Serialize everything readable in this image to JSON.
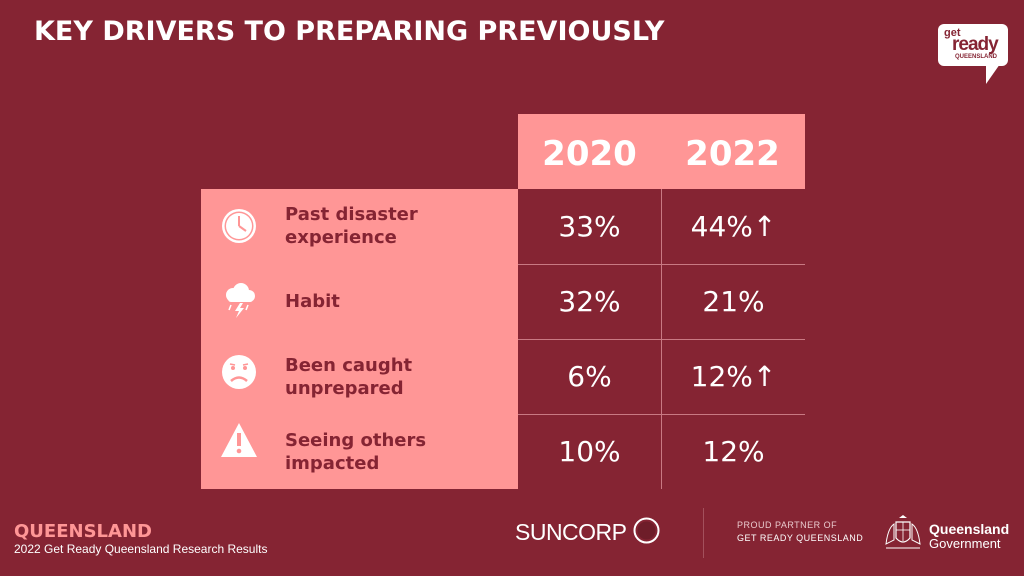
{
  "title": "KEY DRIVERS TO PREPARING PREVIOUSLY",
  "logo": {
    "get": "get",
    "ready": "ready",
    "queensland": "QUEENSLAND"
  },
  "table": {
    "years": [
      "2020",
      "2022"
    ],
    "rows": [
      {
        "icon": "clock-icon",
        "label_line1": "Past disaster",
        "label_line2": "experience",
        "v2020": "33%",
        "v2022": "44%↑"
      },
      {
        "icon": "storm-cloud-icon",
        "label_line1": "Habit",
        "label_line2": "",
        "v2020": "32%",
        "v2022": "21%"
      },
      {
        "icon": "sad-face-icon",
        "label_line1": "Been caught",
        "label_line2": "unprepared",
        "v2020": "6%",
        "v2022": "12%↑"
      },
      {
        "icon": "warning-icon",
        "label_line1": "Seeing others",
        "label_line2": "impacted",
        "v2020": "10%",
        "v2022": "12%"
      }
    ]
  },
  "footer": {
    "region": "QUEENSLAND",
    "subtitle": "2022 Get Ready Queensland Research Results",
    "suncorp": "SUNCORP",
    "partner_line1": "PROUD PARTNER OF",
    "partner_line2": "GET READY QUEENSLAND",
    "gov_line1": "Queensland",
    "gov_line2": "Government"
  },
  "colors": {
    "background": "#852433",
    "accent": "#ff9696",
    "label_text": "#852433"
  }
}
